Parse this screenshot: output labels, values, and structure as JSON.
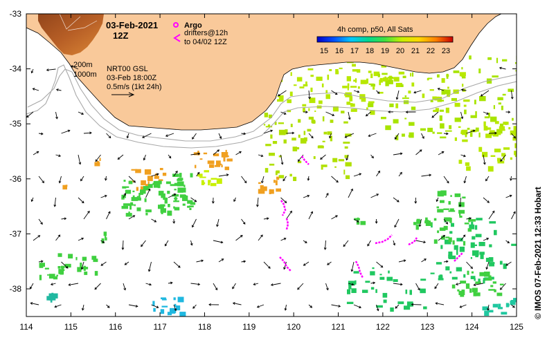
{
  "map": {
    "datetime_title": "03-Feb-2021",
    "time_title": "12Z",
    "sst_product": "4h comp, p50, All Sats",
    "colorbar": {
      "ticks": [
        "15",
        "16",
        "17",
        "18",
        "19",
        "20",
        "21",
        "22",
        "23"
      ],
      "colors": [
        "#0000c8",
        "#0050ff",
        "#00c8ff",
        "#00d890",
        "#40e040",
        "#c8f000",
        "#ffd800",
        "#ff8000",
        "#c80000"
      ]
    },
    "argo": {
      "label": "Argo",
      "marker_color": "#ff00ff"
    },
    "drifters": {
      "line1": "drifters@12h",
      "line2": "to 04/02 12Z",
      "color": "#ff00ff"
    },
    "isobaths": {
      "label_200": "200m",
      "label_1000": "1000m"
    },
    "currents": {
      "product": "NRT00 GSL",
      "time": "03-Feb 18:00Z",
      "scale": "0.5m/s (1kt 24h)"
    },
    "x_ticks": [
      "114",
      "115",
      "116",
      "117",
      "118",
      "119",
      "120",
      "121",
      "122",
      "123",
      "124",
      "125"
    ],
    "y_ticks": [
      "-33",
      "-34",
      "-35",
      "-36",
      "-37",
      "-38"
    ],
    "credit": "© IMOS 07-Feb-2021 12:33 Hobart",
    "land_color": "#f9c99a"
  }
}
